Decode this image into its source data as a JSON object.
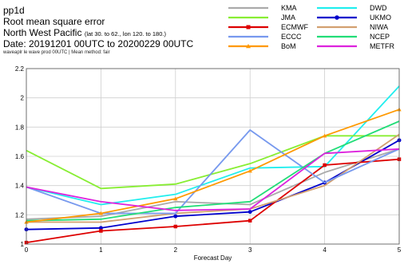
{
  "header": {
    "line1": "pp1d",
    "line2": "Root mean square error",
    "line3_main": "North West Pacific",
    "line3_small": "(lat 30. to 62., lon 120. to 180.)",
    "line4": "Date: 20191201 00UTC to 20200229 00UTC",
    "line5": "waveaplr le wave prod 00UTC | Mean method: fair"
  },
  "chart_data": {
    "type": "line",
    "title": "",
    "xlabel": "Forecast Day",
    "ylabel": "",
    "x": [
      0,
      1,
      2,
      3,
      4,
      5
    ],
    "xlim": [
      0,
      5
    ],
    "ylim": [
      1,
      2.2
    ],
    "xticks": [
      "0",
      "1",
      "2",
      "3",
      "4",
      "5"
    ],
    "yticks": [
      "1",
      "1.2",
      "1.4",
      "1.6",
      "1.8",
      "2",
      "2.2"
    ],
    "grid": true,
    "legend_position": "top-right",
    "series": [
      {
        "name": "KMA",
        "color": "#aaaaaa",
        "marker": "none",
        "values": [
          1.17,
          1.19,
          1.29,
          1.27,
          1.49,
          1.65
        ]
      },
      {
        "name": "DWD",
        "color": "#22eeee",
        "marker": "none",
        "values": [
          1.39,
          1.27,
          1.34,
          1.52,
          1.53,
          2.08
        ]
      },
      {
        "name": "JMA",
        "color": "#88ee33",
        "marker": "none",
        "values": [
          1.64,
          1.38,
          1.41,
          1.55,
          1.74,
          1.74
        ]
      },
      {
        "name": "UKMO",
        "color": "#0000cc",
        "marker": "circle",
        "values": [
          1.1,
          1.11,
          1.19,
          1.22,
          1.42,
          1.71
        ]
      },
      {
        "name": "ECMWF",
        "color": "#dd0000",
        "marker": "square",
        "values": [
          1.01,
          1.09,
          1.12,
          1.16,
          1.54,
          1.58
        ]
      },
      {
        "name": "NIWA",
        "color": "#d2a070",
        "marker": "none",
        "values": [
          1.15,
          1.15,
          1.21,
          1.24,
          1.4,
          1.75
        ]
      },
      {
        "name": "ECCC",
        "color": "#7799ee",
        "marker": "none",
        "values": [
          1.39,
          1.21,
          1.21,
          1.78,
          1.42,
          1.65
        ]
      },
      {
        "name": "NCEP",
        "color": "#22dd77",
        "marker": "none",
        "values": [
          1.16,
          1.17,
          1.25,
          1.29,
          1.62,
          1.84
        ]
      },
      {
        "name": "BoM",
        "color": "#ff9900",
        "marker": "triangle",
        "values": [
          1.15,
          1.21,
          1.31,
          1.5,
          1.74,
          1.92
        ]
      },
      {
        "name": "METFR",
        "color": "#dd22dd",
        "marker": "none",
        "values": [
          1.39,
          1.29,
          1.23,
          1.24,
          1.62,
          1.65
        ]
      }
    ]
  }
}
